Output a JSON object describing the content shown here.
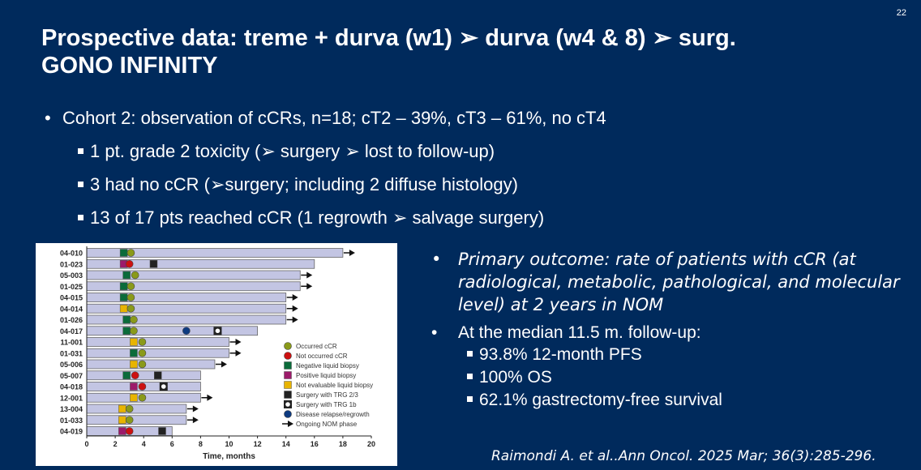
{
  "page_number": "22",
  "title": {
    "line1": "Prospective data: treme + durva (w1) ➢ durva (w4 & 8) ➢ surg.",
    "line2": "GONO INFINITY"
  },
  "bullets": {
    "main": "Cohort 2: observation of cCRs, n=18;   cT2 – 39%, cT3 – 61%, no cT4",
    "sub": [
      "1 pt. grade 2 toxicity (➢ surgery ➢ lost to follow-up)",
      "3 had no cCR (➢surgery; including 2 diffuse histology)",
      "13 of 17 pts reached cCR (1 regrowth ➢ salvage surgery)"
    ]
  },
  "right": {
    "primary": "Primary outcome: rate of patients with cCR (at radiological, metabolic, pathological, and molecular level) at 2 years in NOM",
    "median": "At the median 11.5 m. follow-up:",
    "sub": [
      "93.8% 12-month PFS",
      "100% OS",
      "62.1% gastrectomy-free survival"
    ]
  },
  "citation": "Raimondi A. et al..Ann Oncol. 2025 Mar; 36(3):285-296.",
  "colors": {
    "background": "#002a5c",
    "bar": "#c3c5e3",
    "occurred_ccr": "#8a9a1a",
    "not_occurred_ccr": "#cc1111",
    "negative_biopsy": "#0b6b3a",
    "positive_biopsy": "#9c1a6a",
    "not_evaluable_biopsy": "#e8b400",
    "surgery_trg23": "#222222",
    "relapse": "#0d3a80"
  },
  "chart_data": {
    "type": "swimmer",
    "xlabel": "Time, months",
    "xlim": [
      0,
      20
    ],
    "xticks": [
      "0",
      "2",
      "4",
      "6",
      "8",
      "10",
      "12",
      "14",
      "16",
      "18",
      "20"
    ],
    "legend": [
      {
        "key": "occurred",
        "label": "Occurred cCR"
      },
      {
        "key": "not_occurred",
        "label": "Not occurred cCR"
      },
      {
        "key": "neg",
        "label": "Negative liquid biopsy"
      },
      {
        "key": "pos",
        "label": "Positive liquid biopsy"
      },
      {
        "key": "ne",
        "label": "Not evaluable liquid biopsy"
      },
      {
        "key": "trg23",
        "label": "Surgery with TRG 2/3"
      },
      {
        "key": "trg1b",
        "label": "Surgery with TRG 1b"
      },
      {
        "key": "relapse",
        "label": "Disease relapse/regrowth"
      },
      {
        "key": "ongoing",
        "label": "Ongoing NOM phase"
      }
    ],
    "legend_position": "right",
    "patients": [
      {
        "id": "04-010",
        "end": 18,
        "biopsy": "neg",
        "biopsy_t": 2.6,
        "ccr": "occurred",
        "ccr_t": 3.1,
        "ongoing": true,
        "events": []
      },
      {
        "id": "01-023",
        "end": 16,
        "biopsy": "pos",
        "biopsy_t": 2.6,
        "ccr": "not_occurred",
        "ccr_t": 3.0,
        "ongoing": false,
        "events": [
          {
            "type": "trg23",
            "t": 4.7
          }
        ]
      },
      {
        "id": "05-003",
        "end": 15,
        "biopsy": "neg",
        "biopsy_t": 2.8,
        "ccr": "occurred",
        "ccr_t": 3.4,
        "ongoing": true,
        "events": []
      },
      {
        "id": "01-025",
        "end": 15,
        "biopsy": "neg",
        "biopsy_t": 2.6,
        "ccr": "occurred",
        "ccr_t": 3.1,
        "ongoing": true,
        "events": []
      },
      {
        "id": "04-015",
        "end": 14,
        "biopsy": "neg",
        "biopsy_t": 2.6,
        "ccr": "occurred",
        "ccr_t": 3.1,
        "ongoing": true,
        "events": []
      },
      {
        "id": "04-014",
        "end": 14,
        "biopsy": "ne",
        "biopsy_t": 2.6,
        "ccr": "occurred",
        "ccr_t": 3.1,
        "ongoing": true,
        "events": []
      },
      {
        "id": "01-026",
        "end": 14,
        "biopsy": "neg",
        "biopsy_t": 2.8,
        "ccr": "occurred",
        "ccr_t": 3.3,
        "ongoing": true,
        "events": []
      },
      {
        "id": "04-017",
        "end": 12,
        "biopsy": "neg",
        "biopsy_t": 2.8,
        "ccr": "occurred",
        "ccr_t": 3.3,
        "ongoing": false,
        "events": [
          {
            "type": "relapse",
            "t": 7.0
          },
          {
            "type": "trg1b",
            "t": 9.2
          }
        ]
      },
      {
        "id": "11-001",
        "end": 10,
        "biopsy": "ne",
        "biopsy_t": 3.3,
        "ccr": "occurred",
        "ccr_t": 3.9,
        "ongoing": true,
        "events": []
      },
      {
        "id": "01-031",
        "end": 10,
        "biopsy": "neg",
        "biopsy_t": 3.3,
        "ccr": "occurred",
        "ccr_t": 3.9,
        "ongoing": true,
        "events": []
      },
      {
        "id": "05-006",
        "end": 9,
        "biopsy": "ne",
        "biopsy_t": 3.3,
        "ccr": "occurred",
        "ccr_t": 3.9,
        "ongoing": true,
        "events": []
      },
      {
        "id": "05-007",
        "end": 8,
        "biopsy": "neg",
        "biopsy_t": 2.8,
        "ccr": "not_occurred",
        "ccr_t": 3.4,
        "ongoing": false,
        "events": [
          {
            "type": "trg23",
            "t": 5.0
          }
        ]
      },
      {
        "id": "04-018",
        "end": 8,
        "biopsy": "pos",
        "biopsy_t": 3.3,
        "ccr": "not_occurred",
        "ccr_t": 3.9,
        "ongoing": false,
        "events": [
          {
            "type": "trg1b",
            "t": 5.4
          }
        ]
      },
      {
        "id": "12-001",
        "end": 8,
        "biopsy": "ne",
        "biopsy_t": 3.3,
        "ccr": "occurred",
        "ccr_t": 3.9,
        "ongoing": true,
        "events": []
      },
      {
        "id": "13-004",
        "end": 7,
        "biopsy": "ne",
        "biopsy_t": 2.5,
        "ccr": "occurred",
        "ccr_t": 3.0,
        "ongoing": true,
        "events": []
      },
      {
        "id": "01-033",
        "end": 7,
        "biopsy": "ne",
        "biopsy_t": 2.5,
        "ccr": "occurred",
        "ccr_t": 3.0,
        "ongoing": true,
        "events": []
      },
      {
        "id": "04-019",
        "end": 6,
        "biopsy": "pos",
        "biopsy_t": 2.5,
        "ccr": "not_occurred",
        "ccr_t": 3.0,
        "ongoing": false,
        "events": [
          {
            "type": "trg23",
            "t": 5.3
          }
        ]
      }
    ]
  }
}
